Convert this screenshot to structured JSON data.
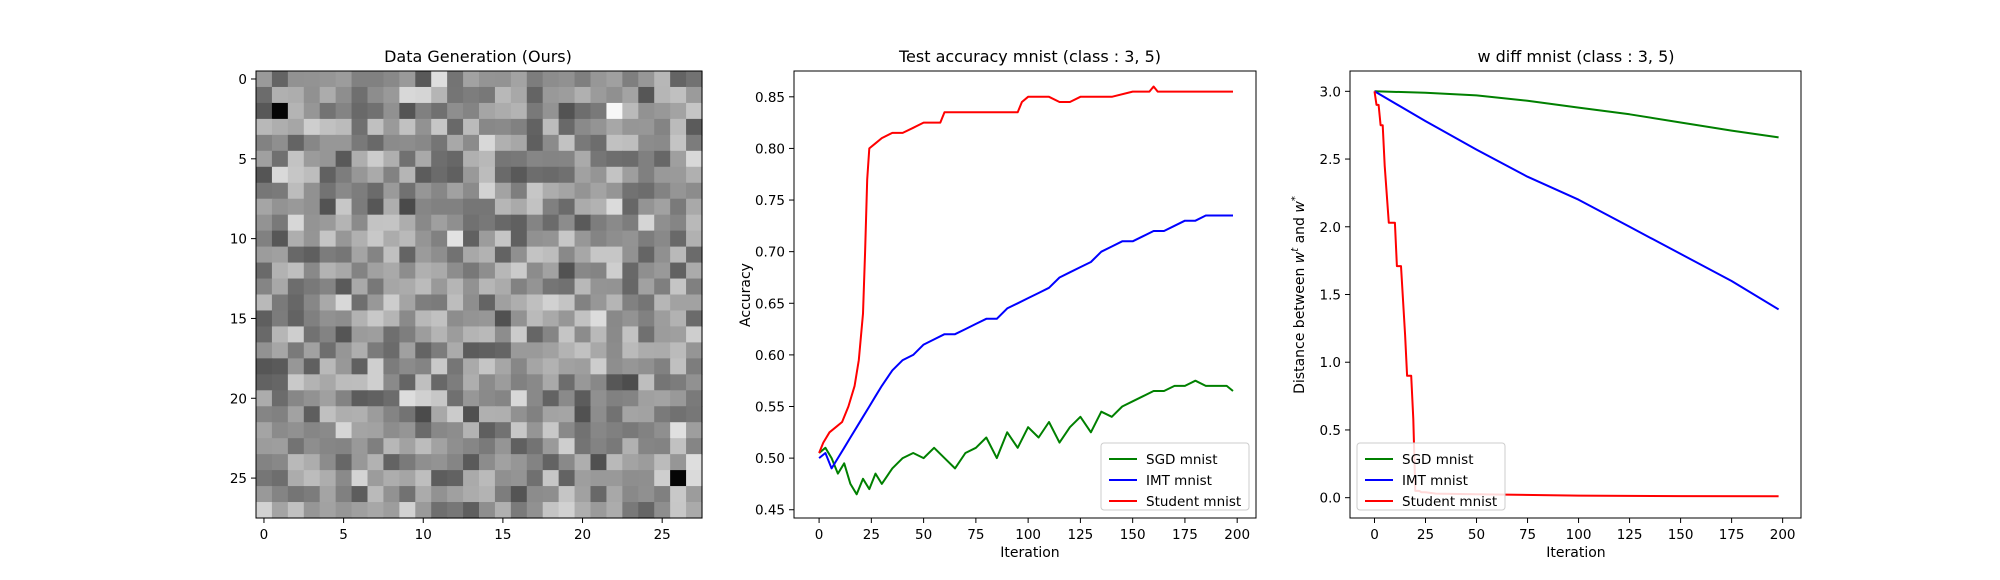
{
  "chart_data": [
    {
      "type": "heatmap",
      "title": "Data Generation (Ours)",
      "xlabel": "",
      "ylabel": "",
      "size": [
        28,
        28
      ],
      "colormap": "gray",
      "xticks": [
        0,
        5,
        10,
        15,
        20,
        25
      ],
      "yticks": [
        0,
        5,
        10,
        15,
        20,
        25
      ],
      "notable_pixels": [
        {
          "row": 2,
          "col": 1,
          "value": "black"
        },
        {
          "row": 2,
          "col": 22,
          "value": "white"
        },
        {
          "row": 25,
          "col": 26,
          "value": "black"
        }
      ]
    },
    {
      "type": "line",
      "title": "Test accuracy mnist (class : 3, 5)",
      "xlabel": "Iteration",
      "ylabel": "Accuracy",
      "xlim": [
        -12,
        209
      ],
      "ylim": [
        0.442,
        0.875
      ],
      "xticks": [
        0,
        25,
        50,
        75,
        100,
        125,
        150,
        175,
        200
      ],
      "yticks": [
        0.45,
        0.5,
        0.55,
        0.6,
        0.65,
        0.7,
        0.75,
        0.8,
        0.85
      ],
      "ytick_labels": [
        "0.45",
        "0.50",
        "0.55",
        "0.60",
        "0.65",
        "0.70",
        "0.75",
        "0.80",
        "0.85"
      ],
      "legend_position": "lower-right",
      "series": [
        {
          "name": "SGD mnist",
          "color": "#008000",
          "x": [
            0,
            3,
            6,
            9,
            12,
            15,
            18,
            21,
            24,
            27,
            30,
            35,
            40,
            45,
            50,
            55,
            60,
            65,
            70,
            75,
            80,
            85,
            90,
            95,
            100,
            105,
            110,
            115,
            120,
            125,
            130,
            135,
            140,
            145,
            150,
            155,
            160,
            165,
            170,
            175,
            180,
            185,
            190,
            195,
            198
          ],
          "y": [
            0.505,
            0.51,
            0.5,
            0.485,
            0.495,
            0.475,
            0.465,
            0.48,
            0.47,
            0.485,
            0.475,
            0.49,
            0.5,
            0.505,
            0.5,
            0.51,
            0.5,
            0.49,
            0.505,
            0.51,
            0.52,
            0.5,
            0.525,
            0.51,
            0.53,
            0.52,
            0.535,
            0.515,
            0.53,
            0.54,
            0.525,
            0.545,
            0.54,
            0.55,
            0.555,
            0.56,
            0.565,
            0.565,
            0.57,
            0.57,
            0.575,
            0.57,
            0.57,
            0.57,
            0.565
          ]
        },
        {
          "name": "IMT mnist",
          "color": "#0000ff",
          "x": [
            0,
            3,
            6,
            9,
            12,
            15,
            18,
            21,
            24,
            27,
            30,
            35,
            40,
            45,
            50,
            55,
            60,
            65,
            70,
            75,
            80,
            85,
            90,
            95,
            100,
            105,
            110,
            115,
            120,
            125,
            130,
            135,
            140,
            145,
            150,
            155,
            160,
            165,
            170,
            175,
            180,
            185,
            190,
            195,
            198
          ],
          "y": [
            0.5,
            0.505,
            0.49,
            0.5,
            0.51,
            0.52,
            0.53,
            0.54,
            0.55,
            0.56,
            0.57,
            0.585,
            0.595,
            0.6,
            0.61,
            0.615,
            0.62,
            0.62,
            0.625,
            0.63,
            0.635,
            0.635,
            0.645,
            0.65,
            0.655,
            0.66,
            0.665,
            0.675,
            0.68,
            0.685,
            0.69,
            0.7,
            0.705,
            0.71,
            0.71,
            0.715,
            0.72,
            0.72,
            0.725,
            0.73,
            0.73,
            0.735,
            0.735,
            0.735,
            0.735
          ]
        },
        {
          "name": "Student mnist",
          "color": "#ff0000",
          "x": [
            0,
            2,
            5,
            8,
            11,
            14,
            17,
            19,
            21,
            22,
            23,
            24,
            27,
            30,
            35,
            40,
            45,
            50,
            55,
            58,
            60,
            70,
            80,
            90,
            95,
            97,
            100,
            110,
            115,
            120,
            125,
            140,
            150,
            155,
            158,
            160,
            162,
            165,
            175,
            185,
            195,
            198
          ],
          "y": [
            0.505,
            0.515,
            0.525,
            0.53,
            0.535,
            0.55,
            0.57,
            0.595,
            0.64,
            0.7,
            0.77,
            0.8,
            0.805,
            0.81,
            0.815,
            0.815,
            0.82,
            0.825,
            0.825,
            0.825,
            0.835,
            0.835,
            0.835,
            0.835,
            0.835,
            0.845,
            0.85,
            0.85,
            0.845,
            0.845,
            0.85,
            0.85,
            0.855,
            0.855,
            0.855,
            0.86,
            0.855,
            0.855,
            0.855,
            0.855,
            0.855,
            0.855
          ]
        }
      ],
      "legend": [
        "SGD mnist",
        "IMT mnist",
        "Student mnist"
      ]
    },
    {
      "type": "line",
      "title": "w diff mnist (class : 3, 5)",
      "xlabel": "Iteration",
      "ylabel": "Distance between w^t and w^*",
      "ylabel_parts": {
        "prefix": "Distance between ",
        "w": "w",
        "t": "t",
        "and": " and ",
        "star": "*"
      },
      "xlim": [
        -12,
        209
      ],
      "ylim": [
        -0.15,
        3.15
      ],
      "xticks": [
        0,
        25,
        50,
        75,
        100,
        125,
        150,
        175,
        200
      ],
      "yticks": [
        0.0,
        0.5,
        1.0,
        1.5,
        2.0,
        2.5,
        3.0
      ],
      "ytick_labels": [
        "0.0",
        "0.5",
        "1.0",
        "1.5",
        "2.0",
        "2.5",
        "3.0"
      ],
      "legend_position": "lower-left",
      "series": [
        {
          "name": "SGD mnist",
          "color": "#008000",
          "x": [
            0,
            25,
            50,
            75,
            100,
            125,
            150,
            175,
            198
          ],
          "y": [
            3.0,
            2.99,
            2.97,
            2.93,
            2.88,
            2.83,
            2.77,
            2.71,
            2.66
          ]
        },
        {
          "name": "IMT mnist",
          "color": "#0000ff",
          "x": [
            0,
            25,
            50,
            75,
            100,
            125,
            150,
            175,
            198
          ],
          "y": [
            3.0,
            2.78,
            2.57,
            2.37,
            2.2,
            2.0,
            1.8,
            1.6,
            1.39
          ]
        },
        {
          "name": "Student mnist",
          "color": "#ff0000",
          "x": [
            0,
            1,
            2,
            3,
            4,
            5,
            7,
            8,
            10,
            11,
            13,
            15,
            16,
            18,
            19,
            20,
            22,
            23,
            25,
            30,
            50,
            100,
            150,
            198
          ],
          "y": [
            3.0,
            2.9,
            2.9,
            2.75,
            2.75,
            2.45,
            2.03,
            2.03,
            2.03,
            1.71,
            1.71,
            1.2,
            0.9,
            0.9,
            0.58,
            0.05,
            0.05,
            0.04,
            0.04,
            0.03,
            0.025,
            0.015,
            0.012,
            0.01
          ]
        }
      ],
      "legend": [
        "SGD mnist",
        "IMT mnist",
        "Student mnist"
      ]
    }
  ]
}
